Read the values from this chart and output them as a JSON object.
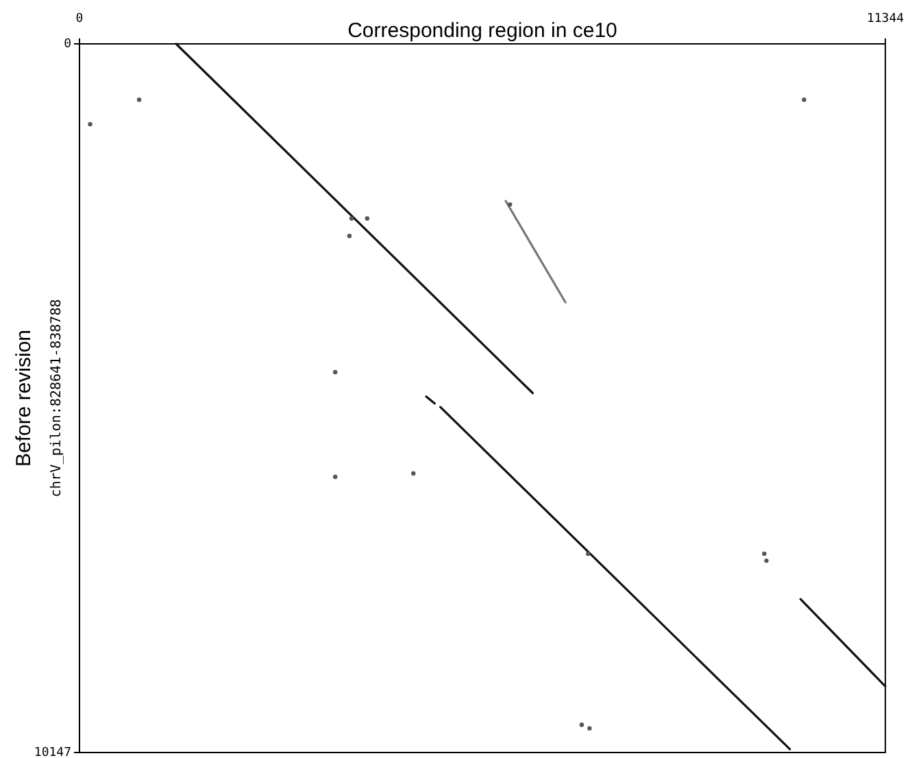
{
  "chart_data": {
    "type": "line",
    "xlabel": "Corresponding region in ce10",
    "ylabel": "Before revision",
    "annotations": [
      "chrV_pilon:828641-838788"
    ],
    "xlim": [
      0,
      11344
    ],
    "ylim": [
      10147,
      0
    ],
    "xticks": [
      0,
      11344
    ],
    "yticks": [
      0,
      10147
    ],
    "grid": false,
    "series": [
      {
        "color": "#111111",
        "x": [
          1360,
          6380
        ],
        "values": [
          0,
          5000
        ],
        "marker": "none"
      },
      {
        "color": "#111111",
        "x": [
          4880,
          5000
        ],
        "values": [
          5050,
          5150
        ],
        "marker": "none"
      },
      {
        "color": "#111111",
        "x": [
          5080,
          10000
        ],
        "values": [
          5200,
          10100
        ],
        "marker": "none"
      },
      {
        "color": "#111111",
        "x": [
          10150,
          11344
        ],
        "values": [
          7950,
          9200
        ],
        "marker": "none"
      },
      {
        "color": "#777777",
        "x": [
          6000,
          6840
        ],
        "values": [
          2250,
          3700
        ],
        "marker": "none"
      },
      {
        "type": "scatter",
        "color": "#555555",
        "marker": "circle",
        "x": [
          3830,
          4050,
          3800,
          3600,
          3600,
          6060,
          7160,
          9640,
          9670,
          7070,
          7180,
          840,
          10200,
          150,
          4700
        ],
        "values": [
          2500,
          2500,
          2750,
          4700,
          6200,
          2300,
          7300,
          7300,
          7400,
          9750,
          9800,
          800,
          800,
          1150,
          6150
        ]
      }
    ]
  }
}
